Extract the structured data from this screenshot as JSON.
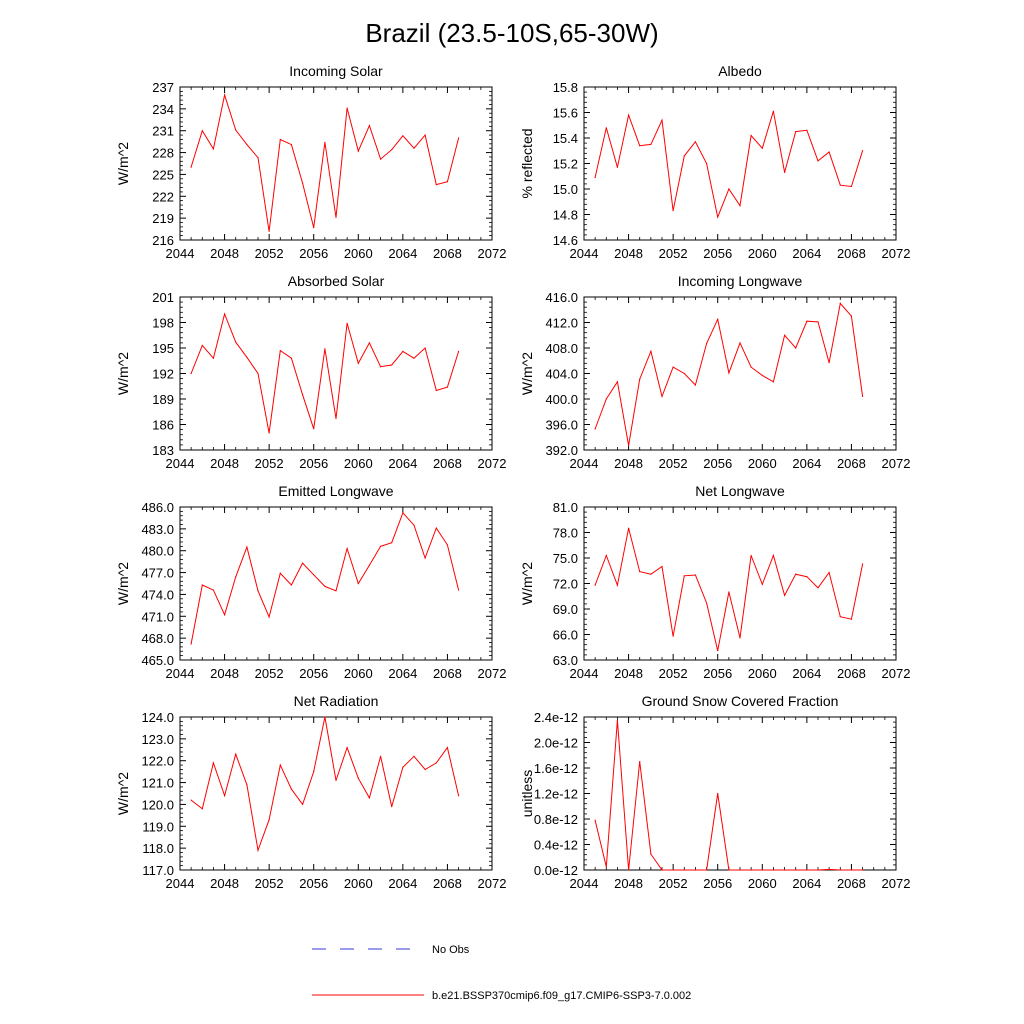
{
  "figure_title": "Brazil (23.5-10S,65-30W)",
  "legend": {
    "obs_label": "No Obs",
    "obs_color": "#3a3ad8",
    "model_label": "b.e21.BSSP370cmip6.f09_g17.CMIP6-SSP3-7.0.002",
    "model_color": "#ff0000"
  },
  "chart_data": [
    {
      "type": "line",
      "title": "Incoming Solar",
      "ylabel": "W/m^2",
      "xlabel": "",
      "xlim": [
        2044,
        2072
      ],
      "xticks": [
        2044,
        2048,
        2052,
        2056,
        2060,
        2064,
        2068,
        2072
      ],
      "ylim": [
        216,
        237
      ],
      "yticks": [
        216,
        219,
        222,
        225,
        228,
        231,
        234,
        237
      ],
      "ytick_decimals": 0,
      "x": [
        2045,
        2046,
        2047,
        2048,
        2049,
        2050,
        2051,
        2052,
        2053,
        2054,
        2055,
        2056,
        2057,
        2058,
        2059,
        2060,
        2061,
        2062,
        2063,
        2064,
        2065,
        2066,
        2067,
        2068,
        2069
      ],
      "values": [
        226.0,
        231.0,
        228.5,
        235.9,
        231.1,
        229.1,
        227.3,
        217.2,
        229.8,
        229.1,
        223.8,
        217.7,
        229.4,
        219.1,
        234.1,
        228.2,
        231.7,
        227.1,
        228.4,
        230.3,
        228.6,
        230.4,
        223.6,
        224.0,
        230.0
      ]
    },
    {
      "type": "line",
      "title": "Albedo",
      "ylabel": "% reflected",
      "xlabel": "",
      "xlim": [
        2044,
        2072
      ],
      "xticks": [
        2044,
        2048,
        2052,
        2056,
        2060,
        2064,
        2068,
        2072
      ],
      "ylim": [
        14.6,
        15.8
      ],
      "yticks": [
        14.6,
        14.8,
        15.0,
        15.2,
        15.4,
        15.6,
        15.8
      ],
      "ytick_decimals": 1,
      "x": [
        2045,
        2046,
        2047,
        2048,
        2049,
        2050,
        2051,
        2052,
        2053,
        2054,
        2055,
        2056,
        2057,
        2058,
        2059,
        2060,
        2061,
        2062,
        2063,
        2064,
        2065,
        2066,
        2067,
        2068,
        2069
      ],
      "values": [
        15.09,
        15.48,
        15.17,
        15.58,
        15.34,
        15.35,
        15.54,
        14.83,
        15.26,
        15.37,
        15.2,
        14.78,
        15.0,
        14.87,
        15.42,
        15.32,
        15.61,
        15.13,
        15.45,
        15.46,
        15.22,
        15.29,
        15.03,
        15.02,
        15.3
      ]
    },
    {
      "type": "line",
      "title": "Absorbed Solar",
      "ylabel": "W/m^2",
      "xlabel": "",
      "xlim": [
        2044,
        2072
      ],
      "xticks": [
        2044,
        2048,
        2052,
        2056,
        2060,
        2064,
        2068,
        2072
      ],
      "ylim": [
        183,
        201
      ],
      "yticks": [
        183,
        186,
        189,
        192,
        195,
        198,
        201
      ],
      "ytick_decimals": 0,
      "x": [
        2045,
        2046,
        2047,
        2048,
        2049,
        2050,
        2051,
        2052,
        2053,
        2054,
        2055,
        2056,
        2057,
        2058,
        2059,
        2060,
        2061,
        2062,
        2063,
        2064,
        2065,
        2066,
        2067,
        2068,
        2069
      ],
      "values": [
        192.0,
        195.3,
        193.8,
        199.0,
        195.7,
        193.9,
        192.0,
        185.0,
        194.7,
        193.8,
        189.5,
        185.5,
        194.9,
        186.7,
        197.9,
        193.2,
        195.6,
        192.8,
        193.0,
        194.6,
        193.8,
        195.0,
        190.0,
        190.4,
        194.6
      ]
    },
    {
      "type": "line",
      "title": "Incoming Longwave",
      "ylabel": "W/m^2",
      "xlabel": "",
      "xlim": [
        2044,
        2072
      ],
      "xticks": [
        2044,
        2048,
        2052,
        2056,
        2060,
        2064,
        2068,
        2072
      ],
      "ylim": [
        392,
        416
      ],
      "yticks": [
        392,
        396,
        400,
        404,
        408,
        412,
        416
      ],
      "ytick_decimals": 1,
      "x": [
        2045,
        2046,
        2047,
        2048,
        2049,
        2050,
        2051,
        2052,
        2053,
        2054,
        2055,
        2056,
        2057,
        2058,
        2059,
        2060,
        2061,
        2062,
        2063,
        2064,
        2065,
        2066,
        2067,
        2068,
        2069
      ],
      "values": [
        395.3,
        400.0,
        402.7,
        392.7,
        403.1,
        407.5,
        400.4,
        405.0,
        404.0,
        402.2,
        408.7,
        412.5,
        404.1,
        408.8,
        405.0,
        403.7,
        402.7,
        410.0,
        408.0,
        412.2,
        412.1,
        405.7,
        415.0,
        413.0,
        400.4
      ]
    },
    {
      "type": "line",
      "title": "Emitted Longwave",
      "ylabel": "W/m^2",
      "xlabel": "",
      "xlim": [
        2044,
        2072
      ],
      "xticks": [
        2044,
        2048,
        2052,
        2056,
        2060,
        2064,
        2068,
        2072
      ],
      "ylim": [
        465,
        486
      ],
      "yticks": [
        465,
        468,
        471,
        474,
        477,
        480,
        483,
        486
      ],
      "ytick_decimals": 1,
      "x": [
        2045,
        2046,
        2047,
        2048,
        2049,
        2050,
        2051,
        2052,
        2053,
        2054,
        2055,
        2056,
        2057,
        2058,
        2059,
        2060,
        2061,
        2062,
        2063,
        2064,
        2065,
        2066,
        2067,
        2068,
        2069
      ],
      "values": [
        467.2,
        475.3,
        474.6,
        471.2,
        476.4,
        480.5,
        474.5,
        470.9,
        476.9,
        475.3,
        478.3,
        476.7,
        475.1,
        474.5,
        480.3,
        475.5,
        478.0,
        480.6,
        481.1,
        485.2,
        483.5,
        479.0,
        483.1,
        480.8,
        474.6
      ]
    },
    {
      "type": "line",
      "title": "Net Longwave",
      "ylabel": "W/m^2",
      "xlabel": "",
      "xlim": [
        2044,
        2072
      ],
      "xticks": [
        2044,
        2048,
        2052,
        2056,
        2060,
        2064,
        2068,
        2072
      ],
      "ylim": [
        63,
        81
      ],
      "yticks": [
        63,
        66,
        69,
        72,
        75,
        78,
        81
      ],
      "ytick_decimals": 1,
      "x": [
        2045,
        2046,
        2047,
        2048,
        2049,
        2050,
        2051,
        2052,
        2053,
        2054,
        2055,
        2056,
        2057,
        2058,
        2059,
        2060,
        2061,
        2062,
        2063,
        2064,
        2065,
        2066,
        2067,
        2068,
        2069
      ],
      "values": [
        71.8,
        75.3,
        71.8,
        78.5,
        73.4,
        73.1,
        74.0,
        65.8,
        72.9,
        73.0,
        69.7,
        64.1,
        71.0,
        65.6,
        75.3,
        71.9,
        75.3,
        70.6,
        73.1,
        72.8,
        71.5,
        73.3,
        68.1,
        67.8,
        74.3
      ]
    },
    {
      "type": "line",
      "title": "Net Radiation",
      "ylabel": "W/m^2",
      "xlabel": "",
      "xlim": [
        2044,
        2072
      ],
      "xticks": [
        2044,
        2048,
        2052,
        2056,
        2060,
        2064,
        2068,
        2072
      ],
      "ylim": [
        117,
        124
      ],
      "yticks": [
        117,
        118,
        119,
        120,
        121,
        122,
        123,
        124
      ],
      "ytick_decimals": 1,
      "x": [
        2045,
        2046,
        2047,
        2048,
        2049,
        2050,
        2051,
        2052,
        2053,
        2054,
        2055,
        2056,
        2057,
        2058,
        2059,
        2060,
        2061,
        2062,
        2063,
        2064,
        2065,
        2066,
        2067,
        2068,
        2069
      ],
      "values": [
        120.2,
        119.8,
        121.9,
        120.4,
        122.3,
        120.9,
        117.9,
        119.3,
        121.8,
        120.7,
        120.0,
        121.5,
        124.0,
        121.1,
        122.6,
        121.2,
        120.3,
        122.2,
        119.9,
        121.7,
        122.2,
        121.6,
        121.9,
        122.6,
        120.4
      ]
    },
    {
      "type": "line",
      "title": "Ground Snow Covered Fraction",
      "ylabel": "unitless",
      "xlabel": "",
      "xlim": [
        2044,
        2072
      ],
      "xticks": [
        2044,
        2048,
        2052,
        2056,
        2060,
        2064,
        2068,
        2072
      ],
      "ylim": [
        0,
        2.4
      ],
      "yticks": [
        0,
        0.4,
        0.8,
        1.2,
        1.6,
        2.0,
        2.4
      ],
      "ytick_labels": [
        "0.0e-12",
        "0.4e-12",
        "0.8e-12",
        "1.2e-12",
        "1.6e-12",
        "2.0e-12",
        "2.4e-12"
      ],
      "value_scale": "1e-12",
      "x": [
        2045,
        2046,
        2047,
        2048,
        2049,
        2050,
        2051,
        2052,
        2053,
        2054,
        2055,
        2056,
        2057,
        2058,
        2059,
        2060,
        2061,
        2062,
        2063,
        2064,
        2065,
        2066,
        2067,
        2068,
        2069
      ],
      "values": [
        0.78,
        0.05,
        2.35,
        0.0,
        1.7,
        0.25,
        0.0,
        0.0,
        0.0,
        0.0,
        0.0,
        1.2,
        0.0,
        0.0,
        0.0,
        0.0,
        0.0,
        0.0,
        0.0,
        0.0,
        0.0,
        0.01,
        0.0,
        0.0,
        0.0
      ]
    }
  ]
}
